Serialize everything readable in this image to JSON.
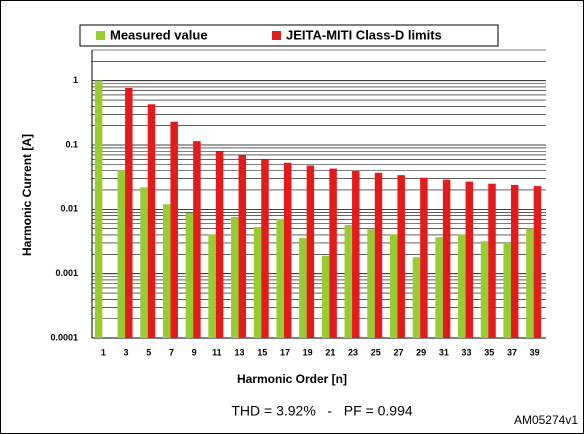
{
  "chart_data": {
    "type": "bar",
    "log_scale": true,
    "grid": true,
    "minor_grid": true,
    "x_label": "Harmonic Order [n]",
    "y_label": "Harmonic Current [A]",
    "annotation": "THD = 3.92%   -   PF = 0.994",
    "figure_id": "AM05274v1",
    "legend": "top",
    "categories": [
      "1",
      "3",
      "5",
      "7",
      "9",
      "11",
      "13",
      "15",
      "17",
      "19",
      "21",
      "23",
      "25",
      "27",
      "29",
      "31",
      "33",
      "35",
      "37",
      "39"
    ],
    "series": [
      {
        "name": "Measured value",
        "color": "#99cc33",
        "values": [
          1,
          0.04,
          0.022,
          0.012,
          0.0088,
          0.0041,
          0.0076,
          0.0053,
          0.0071,
          0.0036,
          0.0019,
          0.0057,
          0.0049,
          0.0041,
          0.0018,
          0.0037,
          0.0041,
          0.0032,
          0.003,
          0.005
        ]
      },
      {
        "name": "JEITA-MITI Class-D limits",
        "color": "#e41b1b",
        "values": [
          null,
          0.77,
          0.43,
          0.23,
          0.115,
          0.08,
          0.07,
          0.06,
          0.053,
          0.048,
          0.043,
          0.04,
          0.037,
          0.034,
          0.031,
          0.029,
          0.027,
          0.025,
          0.024,
          0.023
        ]
      }
    ],
    "ylim": [
      0.0001,
      3
    ],
    "yticks": [
      0.0001,
      0.001,
      0.01,
      0.1,
      1
    ]
  }
}
